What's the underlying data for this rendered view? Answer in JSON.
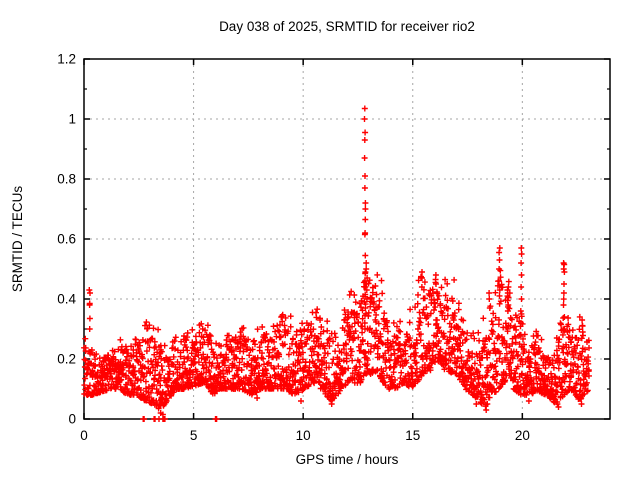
{
  "chart_data": {
    "type": "scatter",
    "title": "Day 038 of 2025, SRMTID for receiver rio2",
    "xlabel": "GPS time / hours",
    "ylabel": "SRMTID / TECUs",
    "xlim": [
      0,
      24
    ],
    "ylim": [
      0,
      1.2
    ],
    "xticks": [
      0,
      5,
      10,
      15,
      20
    ],
    "xtick_labels": [
      "0",
      "5",
      "10",
      "15",
      "20"
    ],
    "yticks": [
      0,
      0.2,
      0.4,
      0.6,
      0.8,
      1.0,
      1.2
    ],
    "ytick_labels": [
      "0",
      "0.2",
      "0.4",
      "0.6",
      "0.8",
      "1",
      "1.2"
    ],
    "y_minor_ticks": [
      0.1,
      0.3,
      0.5,
      0.7,
      0.9,
      1.1
    ],
    "grid": true,
    "legend": "none",
    "marker": "plus",
    "marker_color": "#ff0000",
    "grid_color": "#a6a6a6",
    "border_color": "#000000",
    "x_start": 0.0,
    "x_end": 23.05,
    "points_per_hour": 110,
    "seed": 20250038,
    "envelope": [
      [
        0.0,
        0.08,
        0.26
      ],
      [
        0.4,
        0.08,
        0.24
      ],
      [
        0.8,
        0.09,
        0.2
      ],
      [
        1.2,
        0.1,
        0.22
      ],
      [
        1.6,
        0.1,
        0.26
      ],
      [
        2.0,
        0.08,
        0.23
      ],
      [
        2.4,
        0.08,
        0.27
      ],
      [
        2.8,
        0.06,
        0.3
      ],
      [
        3.1,
        0.05,
        0.32
      ],
      [
        3.5,
        0.03,
        0.26
      ],
      [
        3.8,
        0.06,
        0.22
      ],
      [
        4.2,
        0.1,
        0.28
      ],
      [
        4.6,
        0.1,
        0.26
      ],
      [
        5.0,
        0.11,
        0.28
      ],
      [
        5.5,
        0.12,
        0.33
      ],
      [
        5.9,
        0.08,
        0.26
      ],
      [
        6.2,
        0.1,
        0.26
      ],
      [
        6.7,
        0.1,
        0.29
      ],
      [
        7.2,
        0.1,
        0.31
      ],
      [
        7.7,
        0.08,
        0.26
      ],
      [
        8.1,
        0.1,
        0.33
      ],
      [
        8.6,
        0.1,
        0.29
      ],
      [
        9.1,
        0.1,
        0.36
      ],
      [
        9.6,
        0.08,
        0.29
      ],
      [
        10.1,
        0.1,
        0.31
      ],
      [
        10.45,
        0.12,
        0.38
      ],
      [
        10.8,
        0.1,
        0.33
      ],
      [
        11.3,
        0.06,
        0.29
      ],
      [
        11.8,
        0.1,
        0.31
      ],
      [
        12.2,
        0.12,
        0.43
      ],
      [
        12.6,
        0.12,
        0.38
      ],
      [
        12.85,
        0.15,
        0.52
      ],
      [
        13.1,
        0.15,
        0.46
      ],
      [
        13.45,
        0.15,
        0.48
      ],
      [
        13.8,
        0.1,
        0.36
      ],
      [
        14.2,
        0.1,
        0.31
      ],
      [
        14.6,
        0.12,
        0.29
      ],
      [
        15.0,
        0.1,
        0.36
      ],
      [
        15.45,
        0.15,
        0.49
      ],
      [
        15.8,
        0.16,
        0.43
      ],
      [
        16.1,
        0.2,
        0.48
      ],
      [
        16.5,
        0.16,
        0.43
      ],
      [
        17.0,
        0.15,
        0.43
      ],
      [
        17.4,
        0.1,
        0.31
      ],
      [
        17.9,
        0.07,
        0.28
      ],
      [
        18.3,
        0.04,
        0.31
      ],
      [
        18.6,
        0.08,
        0.38
      ],
      [
        18.95,
        0.1,
        0.5
      ],
      [
        19.2,
        0.12,
        0.38
      ],
      [
        19.4,
        0.15,
        0.44
      ],
      [
        19.6,
        0.1,
        0.3
      ],
      [
        19.95,
        0.08,
        0.4
      ],
      [
        20.2,
        0.08,
        0.22
      ],
      [
        20.7,
        0.09,
        0.3
      ],
      [
        21.1,
        0.08,
        0.21
      ],
      [
        21.5,
        0.05,
        0.22
      ],
      [
        21.9,
        0.08,
        0.4
      ],
      [
        22.2,
        0.1,
        0.31
      ],
      [
        22.6,
        0.06,
        0.33
      ],
      [
        23.05,
        0.1,
        0.24
      ]
    ],
    "spike_columns": [
      {
        "x": 0.25,
        "ys": [
          0.43,
          0.42,
          0.385,
          0.38,
          0.335,
          0.3
        ]
      },
      {
        "x": 12.82,
        "ys": [
          1.035,
          1.0,
          0.955,
          0.93,
          0.87,
          0.81,
          0.77,
          0.72,
          0.7,
          0.665,
          0.62,
          0.615,
          0.545,
          0.49,
          0.485,
          0.46,
          0.44,
          0.415,
          0.39,
          0.37,
          0.345,
          0.32,
          0.3
        ]
      },
      {
        "x": 12.9,
        "ys": [
          0.52,
          0.5,
          0.47,
          0.45,
          0.43,
          0.4
        ]
      },
      {
        "x": 15.4,
        "ys": [
          0.49,
          0.47,
          0.44
        ]
      },
      {
        "x": 16.05,
        "ys": [
          0.48,
          0.465,
          0.45
        ]
      },
      {
        "x": 18.5,
        "ys": [
          0.42,
          0.4,
          0.37
        ]
      },
      {
        "x": 18.95,
        "ys": [
          0.57,
          0.555,
          0.53,
          0.5,
          0.46,
          0.43
        ]
      },
      {
        "x": 19.35,
        "ys": [
          0.44,
          0.43,
          0.42,
          0.405,
          0.395,
          0.38,
          0.36
        ]
      },
      {
        "x": 19.95,
        "ys": [
          0.57,
          0.55,
          0.52,
          0.48,
          0.44,
          0.4,
          0.36,
          0.32,
          0.28,
          0.24,
          0.2
        ]
      },
      {
        "x": 21.9,
        "ys": [
          0.52,
          0.515,
          0.5,
          0.49,
          0.45,
          0.42,
          0.38,
          0.34,
          0.3
        ]
      },
      {
        "x": 22.75,
        "ys": [
          0.33,
          0.31,
          0.29
        ]
      }
    ],
    "low_points": [
      [
        2.7,
        0
      ],
      [
        2.74,
        0
      ],
      [
        3.2,
        0
      ],
      [
        3.24,
        0
      ],
      [
        3.42,
        0
      ],
      [
        3.6,
        0
      ],
      [
        3.63,
        0
      ],
      [
        3.66,
        0
      ],
      [
        3.69,
        0
      ],
      [
        3.6,
        0.015
      ],
      [
        3.5,
        0.02
      ],
      [
        3.5,
        0.045
      ],
      [
        3.52,
        0.065
      ],
      [
        3.48,
        0.085
      ],
      [
        6.0,
        0
      ],
      [
        6.05,
        0
      ],
      [
        7.9,
        0.07
      ],
      [
        9.9,
        0.06
      ],
      [
        11.3,
        0.05
      ],
      [
        17.9,
        0.05
      ],
      [
        18.35,
        0.03
      ],
      [
        18.4,
        0.05
      ],
      [
        20.3,
        0.06
      ],
      [
        21.6,
        0.05
      ],
      [
        21.65,
        0.04
      ],
      [
        22.7,
        0.05
      ]
    ]
  }
}
